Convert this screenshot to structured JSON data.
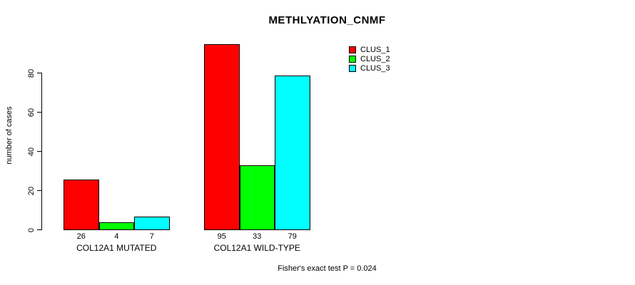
{
  "chart_data": {
    "type": "bar",
    "title": "METHLYATION_CNMF",
    "ylabel": "number of cases",
    "xlabel": "",
    "categories": [
      "COL12A1 MUTATED",
      "COL12A1 WILD-TYPE"
    ],
    "series": [
      {
        "name": "CLUS_1",
        "color": "#ff0000",
        "values": [
          26,
          95
        ]
      },
      {
        "name": "CLUS_2",
        "color": "#00ff00",
        "values": [
          4,
          33
        ]
      },
      {
        "name": "CLUS_3",
        "color": "#00ffff",
        "values": [
          7,
          79
        ]
      }
    ],
    "yticks": [
      0,
      20,
      40,
      60,
      80
    ],
    "ylim": [
      0,
      95
    ],
    "grid": false,
    "legend_position": "top-right-inside",
    "bar_value_labels": true,
    "annotation": "Fisher's exact test P = 0.024",
    "bar_border_color": "#000000",
    "text_color": "#000000",
    "background_color": "#ffffff"
  }
}
